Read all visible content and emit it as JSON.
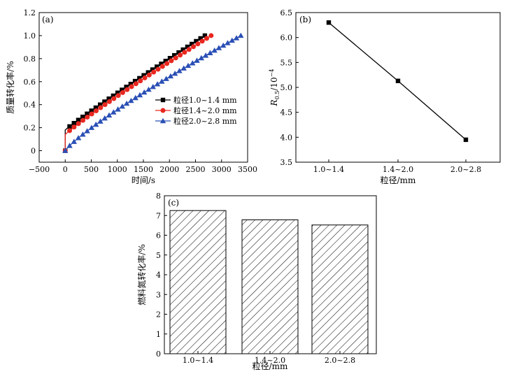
{
  "chart_data": [
    {
      "panel_label": "(a)",
      "type": "line",
      "xlabel": "时间/s",
      "ylabel": "质量转化率/%",
      "xlim": [
        -500,
        3500
      ],
      "ylim": [
        -0.1,
        1.2
      ],
      "xticks": [
        "−500",
        "0",
        "500",
        "1000",
        "1500",
        "2000",
        "2500",
        "3000",
        "3500"
      ],
      "xtick_values": [
        -500,
        0,
        500,
        1000,
        1500,
        2000,
        2500,
        3000,
        3500
      ],
      "yticks": [
        "0",
        "0.2",
        "0.4",
        "0.6",
        "0.8",
        "1.0",
        "1.2"
      ],
      "ytick_values": [
        0,
        0.2,
        0.4,
        0.6,
        0.8,
        1.0,
        1.2
      ],
      "legend_position": "center-right",
      "series": [
        {
          "name": "粒径1.0~1.4 mm",
          "color": "#000000",
          "marker": "square",
          "t_end": 2680,
          "y_jump": 0.18,
          "y_end": 1.0,
          "power": 0.95
        },
        {
          "name": "粒径1.4~2.0 mm",
          "color": "#e8271f",
          "marker": "circle",
          "t_end": 2800,
          "y_jump": 0.14,
          "y_end": 1.0,
          "power": 0.92
        },
        {
          "name": "粒径2.0~2.8 mm",
          "color": "#2a4fb5",
          "marker": "triangle",
          "t_end": 3370,
          "y_jump": 0.0,
          "y_end": 1.0,
          "power": 0.85
        }
      ]
    },
    {
      "panel_label": "(b)",
      "type": "line",
      "xlabel": "粒径/mm",
      "ylabel_main": "R",
      "ylabel_sub": "0.5",
      "ylabel_unit": "/10",
      "ylabel_sup": "−4",
      "categories": [
        "1.0~1.4",
        "1.4~2.0",
        "2.0~2.8"
      ],
      "values": [
        6.3,
        5.13,
        3.95
      ],
      "ylim": [
        3.5,
        6.5
      ],
      "yticks": [
        "3.5",
        "4.0",
        "4.5",
        "5.0",
        "5.5",
        "6.0",
        "6.5"
      ],
      "ytick_values": [
        3.5,
        4.0,
        4.5,
        5.0,
        5.5,
        6.0,
        6.5
      ],
      "color": "#000000",
      "marker": "square"
    },
    {
      "panel_label": "(c)",
      "type": "bar",
      "xlabel": "粒径/mm",
      "ylabel": "燃料氮转化率/%",
      "categories": [
        "1.0~1.4",
        "1.4~2.0",
        "2.0~2.8"
      ],
      "values": [
        7.25,
        6.78,
        6.52
      ],
      "ylim": [
        0,
        8
      ],
      "yticks": [
        "0",
        "1",
        "2",
        "3",
        "4",
        "5",
        "6",
        "7",
        "8"
      ],
      "ytick_values": [
        0,
        1,
        2,
        3,
        4,
        5,
        6,
        7,
        8
      ],
      "fill": "hatched"
    }
  ]
}
